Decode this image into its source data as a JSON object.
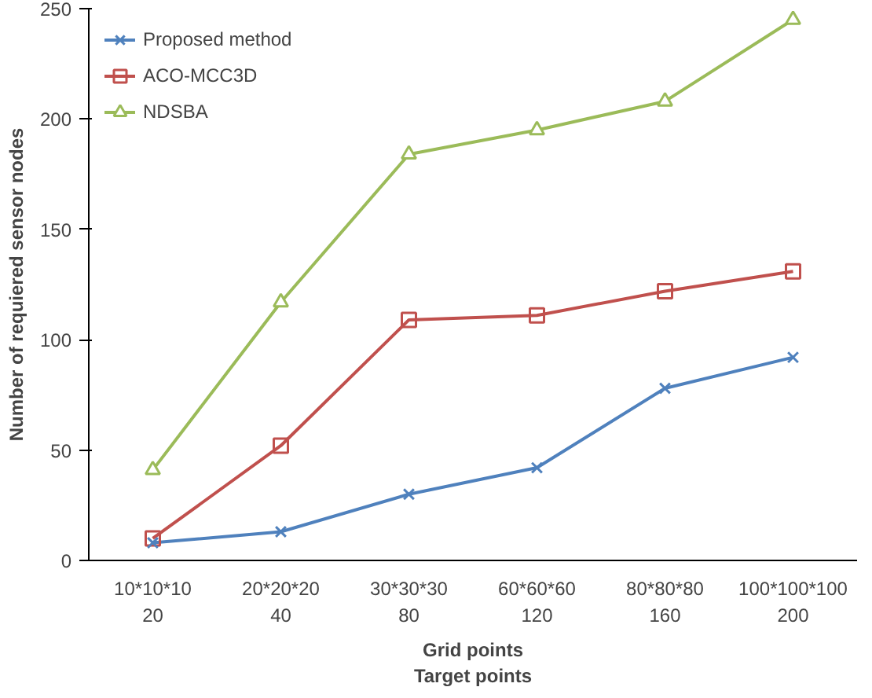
{
  "chart_data": {
    "type": "line",
    "ylabel": "Number of requiered sensor nodes",
    "xlabel": "Grid points\nTarget points",
    "categories": [
      "10*10*10\n20",
      "20*20*20\n40",
      "30*30*30\n80",
      "60*60*60\n120",
      "80*80*80\n160",
      "100*100*100\n200"
    ],
    "ylim": [
      0,
      250
    ],
    "yticks": [
      0,
      50,
      100,
      150,
      200,
      250
    ],
    "grid": false,
    "legend": "top left",
    "line_style": "solid",
    "series": [
      {
        "name": "Proposed method",
        "color": "#4f81bd",
        "marker": "cross",
        "values": [
          8,
          13,
          30,
          42,
          78,
          92
        ]
      },
      {
        "name": "ACO-MCC3D",
        "color": "#c0504d",
        "marker": "square",
        "values": [
          10,
          52,
          109,
          111,
          122,
          131
        ]
      },
      {
        "name": "NDSBA",
        "color": "#9bbb59",
        "marker": "triangle",
        "values": [
          41,
          117,
          184,
          195,
          208,
          245
        ]
      }
    ]
  }
}
